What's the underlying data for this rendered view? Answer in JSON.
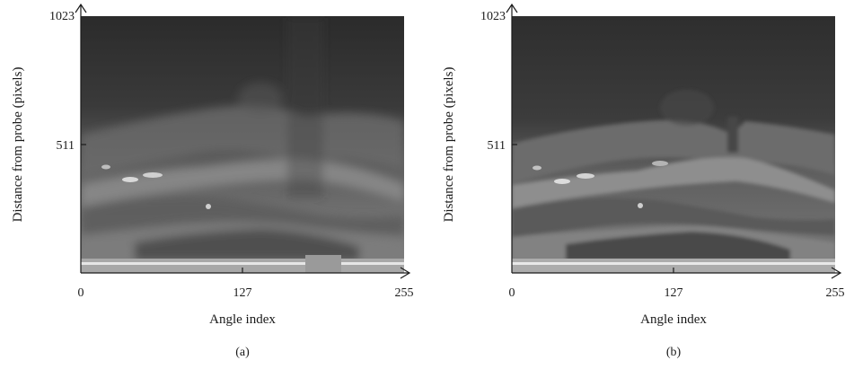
{
  "panels": [
    {
      "caption": "(a)",
      "xlabel": "Angle index",
      "ylabel": "Distance from probe (pixels)",
      "xticks": [
        "0",
        "127",
        "255"
      ],
      "yticks": [
        "1023",
        "511"
      ],
      "xlim": [
        0,
        255
      ],
      "ylim": [
        0,
        1023
      ]
    },
    {
      "caption": "(b)",
      "xlabel": "Angle index",
      "ylabel": "Distance from probe (pixels)",
      "xticks": [
        "0",
        "127",
        "255"
      ],
      "yticks": [
        "1023",
        "511"
      ],
      "xlim": [
        0,
        255
      ],
      "ylim": [
        0,
        1023
      ]
    }
  ]
}
